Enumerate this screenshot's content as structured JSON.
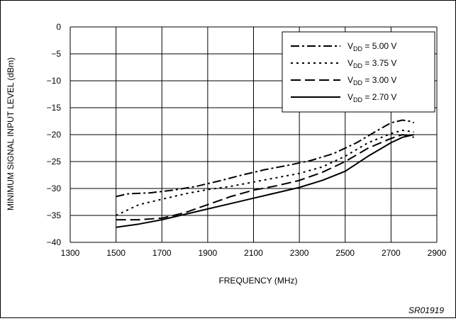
{
  "chart_data": {
    "type": "line",
    "xlabel": "FREQUENCY (MHz)",
    "ylabel": "MINIMUM SIGNAL INPUT LEVEL (dBm)",
    "xlim": [
      1300,
      2900
    ],
    "ylim": [
      -40,
      0
    ],
    "x_ticks": [
      1300,
      1500,
      1700,
      1900,
      2100,
      2300,
      2500,
      2700,
      2900
    ],
    "y_ticks": [
      0,
      -5,
      -10,
      -15,
      -20,
      -25,
      -30,
      -35,
      -40
    ],
    "grid": true,
    "legend_position": "top-right",
    "series": [
      {
        "name": "V_DD = 5.00 V",
        "label_main": "V",
        "label_sub": "DD",
        "label_value": " = 5.00 V",
        "dash": "dash-dot",
        "x": [
          1500,
          1550,
          1650,
          1750,
          1850,
          1950,
          2050,
          2150,
          2250,
          2350,
          2450,
          2550,
          2650,
          2700,
          2750,
          2780,
          2800
        ],
        "y": [
          -31.5,
          -31.0,
          -30.8,
          -30.3,
          -29.6,
          -28.6,
          -27.5,
          -26.5,
          -25.7,
          -24.8,
          -23.5,
          -21.5,
          -19.0,
          -17.8,
          -17.3,
          -17.5,
          -17.8
        ]
      },
      {
        "name": "V_DD = 3.75 V",
        "label_main": "V",
        "label_sub": "DD",
        "label_value": " = 3.75 V",
        "dash": "dot",
        "x": [
          1500,
          1600,
          1700,
          1800,
          1900,
          2000,
          2100,
          2200,
          2300,
          2400,
          2500,
          2600,
          2700,
          2750,
          2800
        ],
        "y": [
          -35.0,
          -33.0,
          -32.0,
          -31.0,
          -30.2,
          -29.6,
          -28.8,
          -28.0,
          -27.2,
          -26.0,
          -24.0,
          -21.5,
          -19.8,
          -19.2,
          -19.5
        ]
      },
      {
        "name": "V_DD = 3.00 V",
        "label_main": "V",
        "label_sub": "DD",
        "label_value": " = 3.00 V",
        "dash": "dash",
        "x": [
          1500,
          1600,
          1700,
          1800,
          1900,
          2000,
          2100,
          2200,
          2300,
          2400,
          2500,
          2600,
          2700,
          2750,
          2800
        ],
        "y": [
          -35.8,
          -35.8,
          -35.5,
          -34.5,
          -33.0,
          -31.5,
          -30.3,
          -29.5,
          -28.5,
          -27.0,
          -25.0,
          -22.5,
          -20.7,
          -20.0,
          -20.5
        ]
      },
      {
        "name": "V_DD = 2.70 V",
        "label_main": "V",
        "label_sub": "DD",
        "label_value": " = 2.70 V",
        "dash": "solid",
        "x": [
          1500,
          1600,
          1700,
          1800,
          1900,
          2000,
          2100,
          2200,
          2300,
          2400,
          2500,
          2600,
          2700,
          2750,
          2800
        ],
        "y": [
          -37.2,
          -36.6,
          -35.8,
          -34.8,
          -33.8,
          -32.8,
          -31.8,
          -30.8,
          -29.8,
          -28.5,
          -26.8,
          -24.0,
          -21.5,
          -20.5,
          -20.0
        ]
      }
    ]
  },
  "figure_code": "SR01919"
}
